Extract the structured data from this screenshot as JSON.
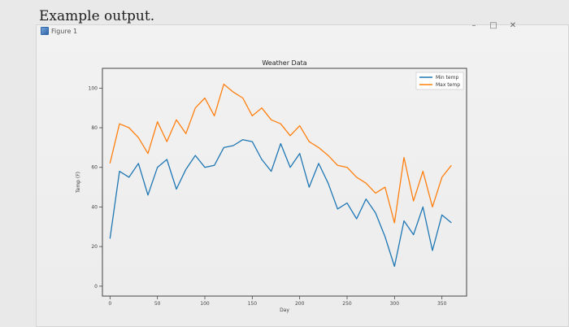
{
  "page": {
    "header_title": "Example output.",
    "window_title": "Figure 1",
    "window_controls": [
      "–",
      "□",
      "✕"
    ]
  },
  "chart_data": {
    "type": "line",
    "title": "Weather Data",
    "xlabel": "Day",
    "ylabel": "Temp (F)",
    "xlim": [
      -8,
      376
    ],
    "ylim": [
      -5,
      110
    ],
    "x_ticks": [
      0,
      50,
      100,
      150,
      200,
      250,
      300,
      350
    ],
    "y_ticks": [
      0,
      20,
      40,
      60,
      80,
      100
    ],
    "grid": false,
    "legend": "top-right",
    "series": [
      {
        "name": "Min temp",
        "color": "#1f77b4",
        "x": [
          0,
          10,
          20,
          30,
          40,
          50,
          60,
          70,
          80,
          90,
          100,
          110,
          120,
          130,
          140,
          150,
          160,
          170,
          180,
          190,
          200,
          210,
          220,
          230,
          240,
          250,
          260,
          270,
          280,
          290,
          300,
          310,
          320,
          330,
          340,
          350,
          360
        ],
        "values": [
          24,
          58,
          55,
          62,
          46,
          60,
          64,
          49,
          59,
          66,
          60,
          61,
          70,
          71,
          74,
          73,
          64,
          58,
          72,
          60,
          67,
          50,
          62,
          52,
          39,
          42,
          34,
          44,
          37,
          25,
          10,
          33,
          26,
          40,
          18,
          36,
          32
        ]
      },
      {
        "name": "Max temp",
        "color": "#ff7f0e",
        "x": [
          0,
          10,
          20,
          30,
          40,
          50,
          60,
          70,
          80,
          90,
          100,
          110,
          120,
          130,
          140,
          150,
          160,
          170,
          180,
          190,
          200,
          210,
          220,
          230,
          240,
          250,
          260,
          270,
          280,
          290,
          300,
          310,
          320,
          330,
          340,
          350,
          360
        ],
        "values": [
          62,
          82,
          80,
          75,
          67,
          83,
          73,
          84,
          77,
          90,
          95,
          86,
          102,
          98,
          95,
          86,
          90,
          84,
          82,
          76,
          81,
          73,
          70,
          66,
          61,
          60,
          55,
          52,
          47,
          50,
          32,
          65,
          43,
          58,
          40,
          55,
          61
        ]
      }
    ]
  }
}
